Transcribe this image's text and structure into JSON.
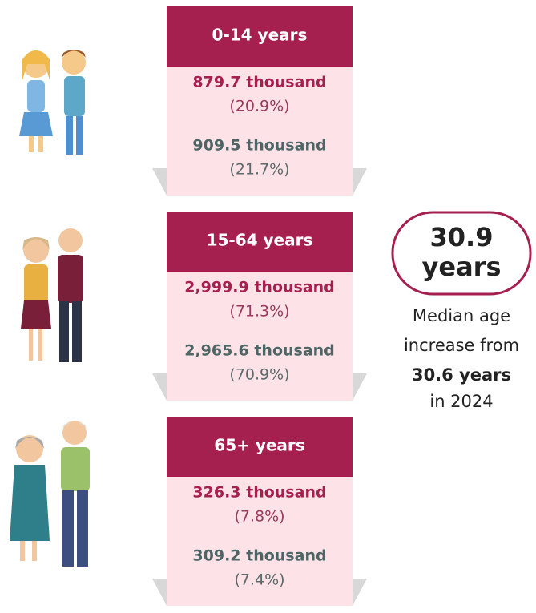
{
  "groups": [
    {
      "label": "0-14 years",
      "first": {
        "value": "879.7 thousand",
        "share": "(20.9%)"
      },
      "second": {
        "value": "909.5 thousand",
        "share": "(21.7%)"
      }
    },
    {
      "label": "15-64 years",
      "first": {
        "value": "2,999.9 thousand",
        "share": "(71.3%)"
      },
      "second": {
        "value": "2,965.6 thousand",
        "share": "(70.9%)"
      }
    },
    {
      "label": "65+ years",
      "first": {
        "value": "326.3 thousand",
        "share": "(7.8%)"
      },
      "second": {
        "value": "309.2 thousand",
        "share": "(7.4%)"
      }
    }
  ],
  "median": {
    "value": "30.9",
    "unit": "years",
    "note_line1": "Median age",
    "note_line2": "increase from",
    "previous": "30.6 years",
    "note_after": "in 2024"
  }
}
